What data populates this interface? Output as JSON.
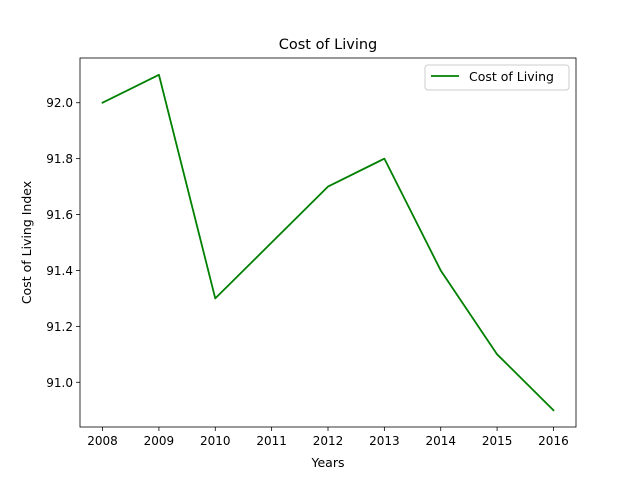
{
  "chart_data": {
    "type": "line",
    "title": "Cost of Living",
    "xlabel": "Years",
    "ylabel": "Cost of Living Index",
    "x": [
      2008,
      2009,
      2010,
      2011,
      2012,
      2013,
      2014,
      2015,
      2016
    ],
    "series": [
      {
        "name": "Cost of Living",
        "color": "#008000",
        "values": [
          92.0,
          92.1,
          91.3,
          91.5,
          91.7,
          91.8,
          91.4,
          91.1,
          90.9
        ]
      }
    ],
    "xlim": [
      2007.6,
      2016.4
    ],
    "ylim": [
      90.84,
      92.16
    ],
    "x_ticks": [
      "2008",
      "2009",
      "2010",
      "2011",
      "2012",
      "2013",
      "2014",
      "2015",
      "2016"
    ],
    "y_ticks": [
      91.0,
      91.2,
      91.4,
      91.6,
      91.8,
      92.0
    ],
    "y_tick_labels": [
      "91.0",
      "91.2",
      "91.4",
      "91.6",
      "91.8",
      "92.0"
    ],
    "grid": false,
    "legend_position": "top-right"
  }
}
